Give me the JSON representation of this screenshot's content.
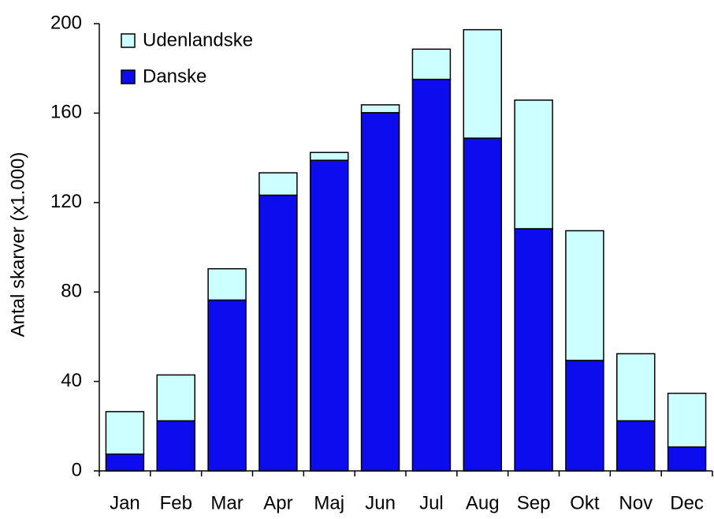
{
  "chart_data": {
    "type": "stacked_bar",
    "y_label": "Antal skarver (x1.000)",
    "categories": [
      "Jan",
      "Feb",
      "Mar",
      "Apr",
      "Maj",
      "Jun",
      "Jul",
      "Aug",
      "Sep",
      "Okt",
      "Nov",
      "Dec"
    ],
    "series": [
      {
        "name": "Danske",
        "color": "#0c0cee",
        "values": [
          7.5,
          22.4,
          76.4,
          123.3,
          138.9,
          160.2,
          175.1,
          148.8,
          108.3,
          49.4,
          22.4,
          10.7
        ]
      },
      {
        "name": "Udenlandske",
        "color": "#ccffff",
        "values": [
          19,
          20.5,
          14,
          10,
          3.5,
          3.5,
          13.5,
          48.5,
          57.5,
          58,
          30,
          24
        ]
      }
    ],
    "ylim": [
      0,
      200
    ],
    "yticks": [
      0,
      40,
      80,
      120,
      160,
      200
    ],
    "legend": "top-left"
  }
}
